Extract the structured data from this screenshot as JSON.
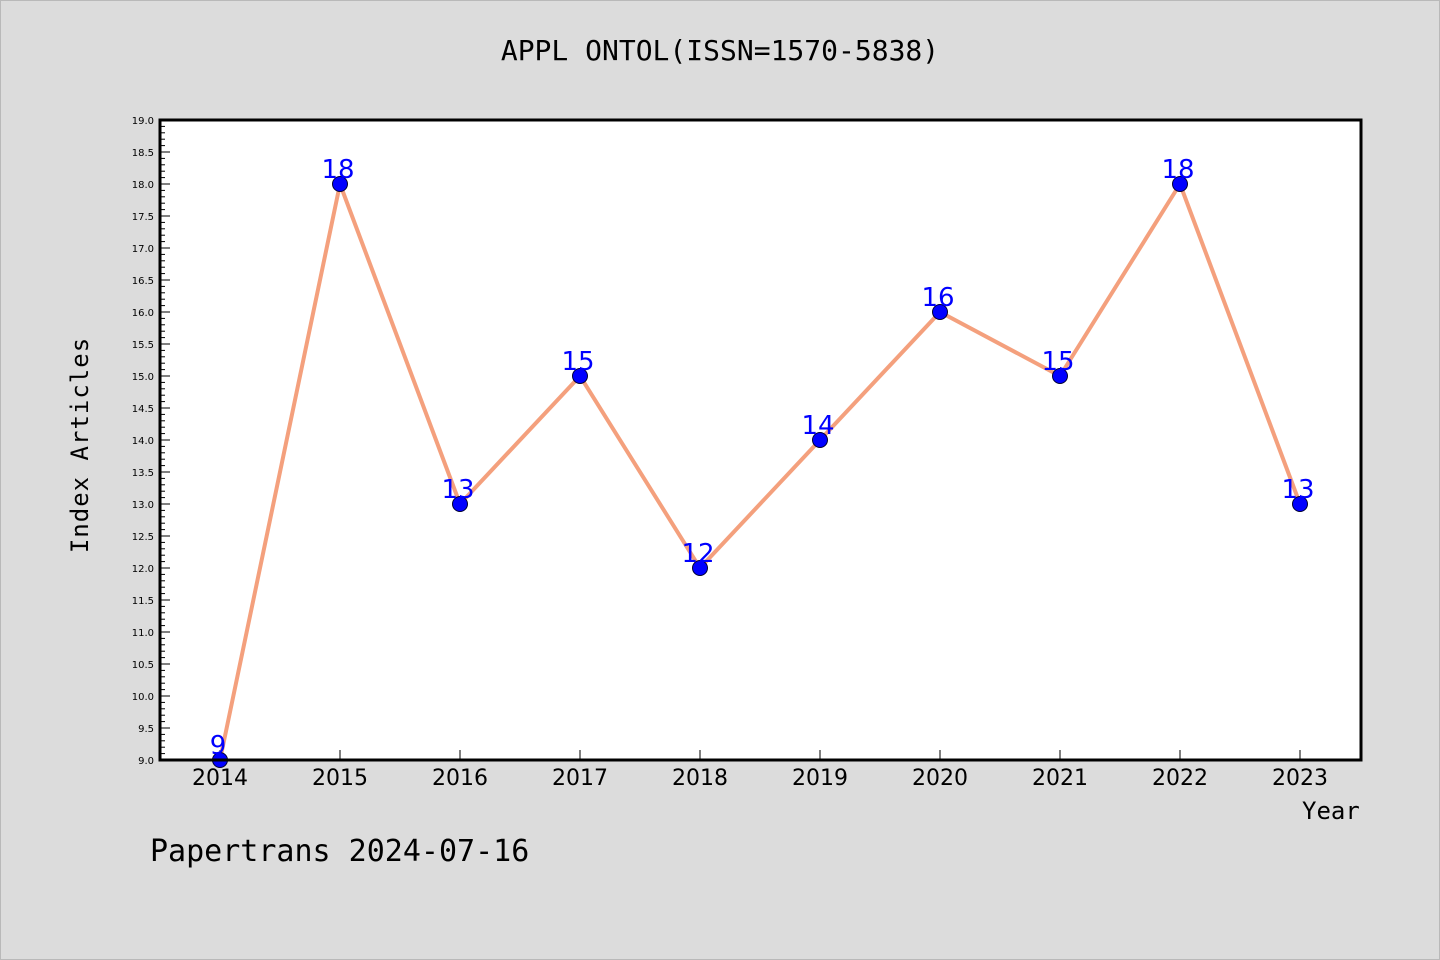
{
  "chart_data": {
    "type": "line",
    "title": "APPL ONTOL(ISSN=1570-5838)",
    "xlabel": "Year",
    "ylabel": "Index Articles",
    "categories": [
      "2014",
      "2015",
      "2016",
      "2017",
      "2018",
      "2019",
      "2020",
      "2021",
      "2022",
      "2023"
    ],
    "series": [
      {
        "values": [
          9,
          18,
          13,
          15,
          12,
          14,
          16,
          15,
          18,
          13
        ]
      }
    ],
    "data_labels": [
      "9",
      "18",
      "13",
      "15",
      "12",
      "14",
      "16",
      "15",
      "18",
      "13"
    ],
    "ylim": [
      9.0,
      19.0
    ],
    "y_ticks": [
      "9.0",
      "9.5",
      "10.0",
      "10.5",
      "11.0",
      "11.5",
      "12.0",
      "12.5",
      "13.0",
      "13.5",
      "14.0",
      "14.5",
      "15.0",
      "15.5",
      "16.0",
      "16.5",
      "17.0",
      "17.5",
      "18.0",
      "18.5",
      "19.0"
    ],
    "grid": false,
    "legend": "none",
    "colors": {
      "line": "#f4a07d",
      "marker": "#0000ff",
      "label": "#0000ff",
      "background": "#dcdcdc",
      "plot_area": "#ffffff"
    }
  },
  "footer": {
    "text": "Papertrans 2024-07-16"
  }
}
